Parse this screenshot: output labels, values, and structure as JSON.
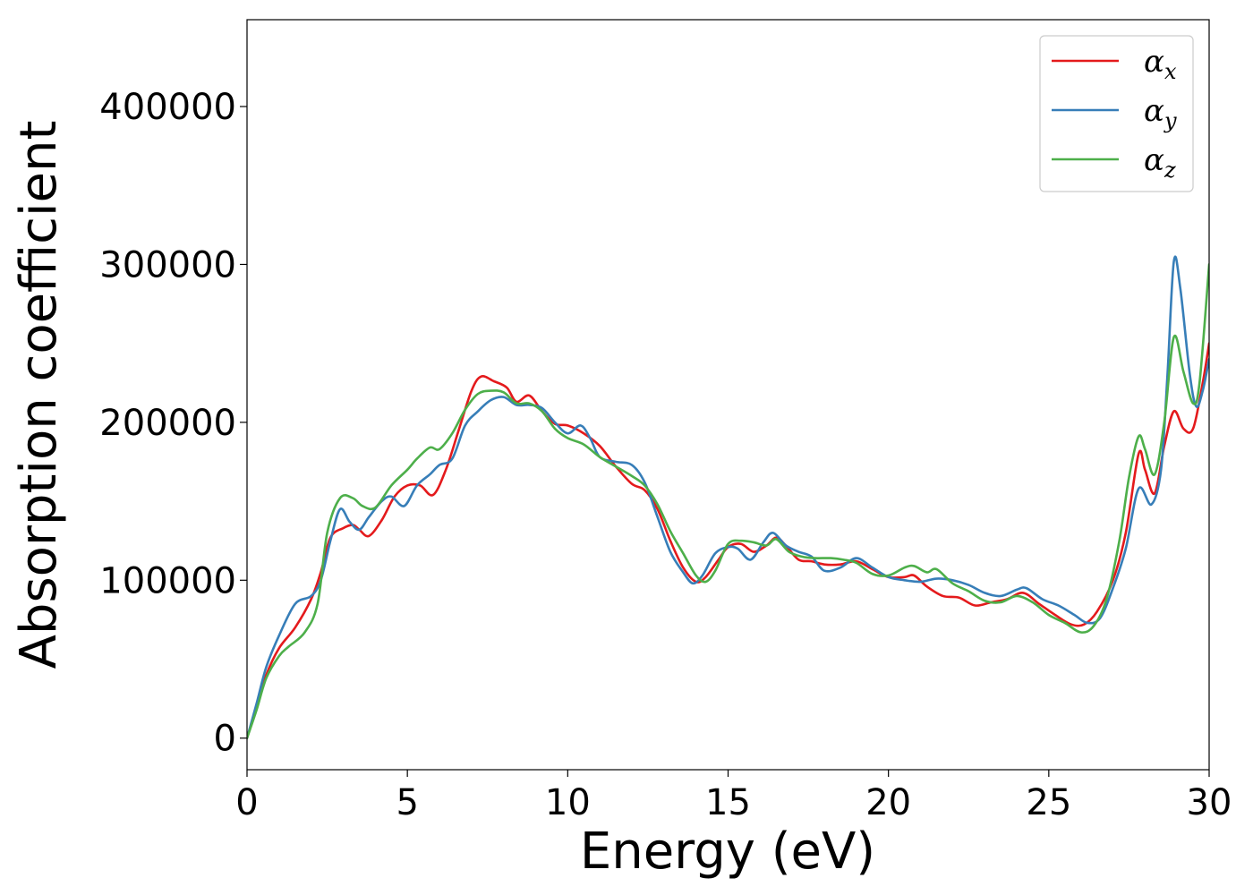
{
  "chart_data": {
    "type": "line",
    "title": "",
    "xlabel": "Energy (eV)",
    "ylabel": "Absorption coefficient",
    "xlim": [
      0,
      30
    ],
    "ylim": [
      -20000,
      455000
    ],
    "grid": false,
    "legend_position": "top-right",
    "x_ticks": [
      {
        "value": 0,
        "label": "0"
      },
      {
        "value": 5,
        "label": "5"
      },
      {
        "value": 10,
        "label": "10"
      },
      {
        "value": 15,
        "label": "15"
      },
      {
        "value": 20,
        "label": "20"
      },
      {
        "value": 25,
        "label": "25"
      },
      {
        "value": 30,
        "label": "30"
      }
    ],
    "y_ticks": [
      {
        "value": 0,
        "label": "0"
      },
      {
        "value": 100000,
        "label": "100000"
      },
      {
        "value": 200000,
        "label": "200000"
      },
      {
        "value": 300000,
        "label": "300000"
      },
      {
        "value": 400000,
        "label": "400000"
      }
    ],
    "series": [
      {
        "name": "α_x",
        "legend_symbol": "α",
        "legend_subscript": "x",
        "color": "#e41a1c",
        "points": [
          [
            0,
            0
          ],
          [
            0.3,
            20000
          ],
          [
            0.6,
            40000
          ],
          [
            1.0,
            57000
          ],
          [
            1.5,
            70000
          ],
          [
            2.0,
            88000
          ],
          [
            2.3,
            105000
          ],
          [
            2.6,
            127000
          ],
          [
            3.0,
            133000
          ],
          [
            3.3,
            135000
          ],
          [
            3.5,
            132000
          ],
          [
            3.8,
            128000
          ],
          [
            4.2,
            138000
          ],
          [
            4.6,
            153000
          ],
          [
            5.0,
            160000
          ],
          [
            5.4,
            160000
          ],
          [
            5.8,
            154000
          ],
          [
            6.2,
            170000
          ],
          [
            6.6,
            195000
          ],
          [
            7.0,
            220000
          ],
          [
            7.3,
            229000
          ],
          [
            7.7,
            226000
          ],
          [
            8.1,
            222000
          ],
          [
            8.4,
            213000
          ],
          [
            8.8,
            217000
          ],
          [
            9.2,
            207000
          ],
          [
            9.6,
            199000
          ],
          [
            10.0,
            198000
          ],
          [
            10.5,
            193000
          ],
          [
            11.0,
            185000
          ],
          [
            11.5,
            172000
          ],
          [
            12.0,
            161000
          ],
          [
            12.4,
            157000
          ],
          [
            12.8,
            145000
          ],
          [
            13.2,
            125000
          ],
          [
            13.6,
            108000
          ],
          [
            14.0,
            99000
          ],
          [
            14.3,
            102000
          ],
          [
            14.7,
            113000
          ],
          [
            15.0,
            121000
          ],
          [
            15.4,
            123000
          ],
          [
            15.8,
            118000
          ],
          [
            16.2,
            122000
          ],
          [
            16.5,
            127000
          ],
          [
            16.8,
            122000
          ],
          [
            17.2,
            113000
          ],
          [
            17.6,
            112000
          ],
          [
            18.0,
            110000
          ],
          [
            18.5,
            110000
          ],
          [
            19.0,
            112000
          ],
          [
            19.5,
            107000
          ],
          [
            20.0,
            102000
          ],
          [
            20.5,
            102000
          ],
          [
            20.8,
            103000
          ],
          [
            21.2,
            96000
          ],
          [
            21.7,
            90000
          ],
          [
            22.2,
            89000
          ],
          [
            22.7,
            84000
          ],
          [
            23.2,
            86000
          ],
          [
            23.7,
            88000
          ],
          [
            24.2,
            92000
          ],
          [
            24.7,
            85000
          ],
          [
            25.2,
            78000
          ],
          [
            25.7,
            72000
          ],
          [
            26.1,
            72000
          ],
          [
            26.5,
            80000
          ],
          [
            27.0,
            100000
          ],
          [
            27.4,
            130000
          ],
          [
            27.8,
            180000
          ],
          [
            28.0,
            170000
          ],
          [
            28.3,
            155000
          ],
          [
            28.6,
            185000
          ],
          [
            28.9,
            207000
          ],
          [
            29.2,
            196000
          ],
          [
            29.5,
            196000
          ],
          [
            29.8,
            225000
          ],
          [
            30.0,
            250000
          ]
        ]
      },
      {
        "name": "α_y",
        "legend_symbol": "α",
        "legend_subscript": "y",
        "color": "#377eb8",
        "points": [
          [
            0,
            0
          ],
          [
            0.3,
            22000
          ],
          [
            0.6,
            45000
          ],
          [
            1.0,
            65000
          ],
          [
            1.5,
            85000
          ],
          [
            2.0,
            90000
          ],
          [
            2.3,
            100000
          ],
          [
            2.6,
            125000
          ],
          [
            2.9,
            145000
          ],
          [
            3.2,
            137000
          ],
          [
            3.5,
            132000
          ],
          [
            3.8,
            140000
          ],
          [
            4.2,
            150000
          ],
          [
            4.5,
            153000
          ],
          [
            4.9,
            147000
          ],
          [
            5.3,
            160000
          ],
          [
            5.7,
            167000
          ],
          [
            6.0,
            173000
          ],
          [
            6.4,
            177000
          ],
          [
            6.8,
            198000
          ],
          [
            7.2,
            207000
          ],
          [
            7.6,
            214000
          ],
          [
            8.0,
            216000
          ],
          [
            8.4,
            211000
          ],
          [
            8.8,
            211000
          ],
          [
            9.2,
            209000
          ],
          [
            9.6,
            200000
          ],
          [
            10.0,
            193000
          ],
          [
            10.4,
            198000
          ],
          [
            10.7,
            190000
          ],
          [
            11.0,
            178000
          ],
          [
            11.5,
            175000
          ],
          [
            12.0,
            173000
          ],
          [
            12.4,
            162000
          ],
          [
            12.8,
            140000
          ],
          [
            13.2,
            118000
          ],
          [
            13.6,
            105000
          ],
          [
            13.9,
            98000
          ],
          [
            14.2,
            103000
          ],
          [
            14.6,
            117000
          ],
          [
            15.0,
            121000
          ],
          [
            15.3,
            120000
          ],
          [
            15.7,
            113000
          ],
          [
            16.1,
            124000
          ],
          [
            16.4,
            130000
          ],
          [
            16.8,
            122000
          ],
          [
            17.2,
            118000
          ],
          [
            17.6,
            115000
          ],
          [
            18.0,
            106000
          ],
          [
            18.5,
            108000
          ],
          [
            19.0,
            114000
          ],
          [
            19.5,
            108000
          ],
          [
            20.0,
            102000
          ],
          [
            20.5,
            100000
          ],
          [
            21.0,
            99000
          ],
          [
            21.5,
            101000
          ],
          [
            22.0,
            100000
          ],
          [
            22.5,
            97000
          ],
          [
            23.0,
            92000
          ],
          [
            23.5,
            90000
          ],
          [
            24.0,
            94000
          ],
          [
            24.3,
            95000
          ],
          [
            24.8,
            88000
          ],
          [
            25.3,
            84000
          ],
          [
            25.8,
            78000
          ],
          [
            26.2,
            73000
          ],
          [
            26.6,
            76000
          ],
          [
            27.0,
            95000
          ],
          [
            27.4,
            120000
          ],
          [
            27.8,
            158000
          ],
          [
            28.2,
            148000
          ],
          [
            28.5,
            170000
          ],
          [
            28.7,
            230000
          ],
          [
            28.9,
            302000
          ],
          [
            29.1,
            285000
          ],
          [
            29.4,
            230000
          ],
          [
            29.6,
            210000
          ],
          [
            29.8,
            220000
          ],
          [
            30.0,
            240000
          ]
        ]
      },
      {
        "name": "α_z",
        "legend_symbol": "α",
        "legend_subscript": "z",
        "color": "#4daf4a",
        "points": [
          [
            0,
            0
          ],
          [
            0.3,
            18000
          ],
          [
            0.6,
            38000
          ],
          [
            1.0,
            52000
          ],
          [
            1.3,
            58000
          ],
          [
            1.8,
            67000
          ],
          [
            2.2,
            85000
          ],
          [
            2.5,
            130000
          ],
          [
            2.9,
            152000
          ],
          [
            3.3,
            152000
          ],
          [
            3.6,
            147000
          ],
          [
            4.0,
            146000
          ],
          [
            4.5,
            160000
          ],
          [
            5.0,
            170000
          ],
          [
            5.3,
            177000
          ],
          [
            5.7,
            184000
          ],
          [
            6.0,
            183000
          ],
          [
            6.4,
            193000
          ],
          [
            6.8,
            208000
          ],
          [
            7.2,
            218000
          ],
          [
            7.6,
            220000
          ],
          [
            8.0,
            219000
          ],
          [
            8.4,
            212000
          ],
          [
            8.8,
            212000
          ],
          [
            9.2,
            207000
          ],
          [
            9.6,
            196000
          ],
          [
            10.0,
            190000
          ],
          [
            10.5,
            186000
          ],
          [
            11.0,
            178000
          ],
          [
            11.5,
            172000
          ],
          [
            12.0,
            166000
          ],
          [
            12.4,
            160000
          ],
          [
            12.8,
            148000
          ],
          [
            13.2,
            131000
          ],
          [
            13.6,
            117000
          ],
          [
            14.0,
            103000
          ],
          [
            14.3,
            99000
          ],
          [
            14.6,
            106000
          ],
          [
            15.0,
            123000
          ],
          [
            15.4,
            125000
          ],
          [
            15.8,
            124000
          ],
          [
            16.2,
            122000
          ],
          [
            16.5,
            126000
          ],
          [
            16.9,
            118000
          ],
          [
            17.3,
            115000
          ],
          [
            17.7,
            114000
          ],
          [
            18.2,
            114000
          ],
          [
            18.6,
            113000
          ],
          [
            19.0,
            111000
          ],
          [
            19.5,
            104000
          ],
          [
            20.0,
            103000
          ],
          [
            20.5,
            108000
          ],
          [
            20.8,
            109000
          ],
          [
            21.2,
            105000
          ],
          [
            21.5,
            107000
          ],
          [
            22.0,
            98000
          ],
          [
            22.5,
            93000
          ],
          [
            23.0,
            87000
          ],
          [
            23.5,
            86000
          ],
          [
            24.0,
            90000
          ],
          [
            24.5,
            86000
          ],
          [
            25.0,
            78000
          ],
          [
            25.5,
            73000
          ],
          [
            26.0,
            67000
          ],
          [
            26.4,
            71000
          ],
          [
            26.8,
            88000
          ],
          [
            27.2,
            125000
          ],
          [
            27.5,
            165000
          ],
          [
            27.8,
            191000
          ],
          [
            28.0,
            183000
          ],
          [
            28.3,
            167000
          ],
          [
            28.6,
            200000
          ],
          [
            28.9,
            254000
          ],
          [
            29.2,
            232000
          ],
          [
            29.5,
            212000
          ],
          [
            29.7,
            225000
          ],
          [
            30.0,
            300000
          ]
        ]
      }
    ]
  }
}
